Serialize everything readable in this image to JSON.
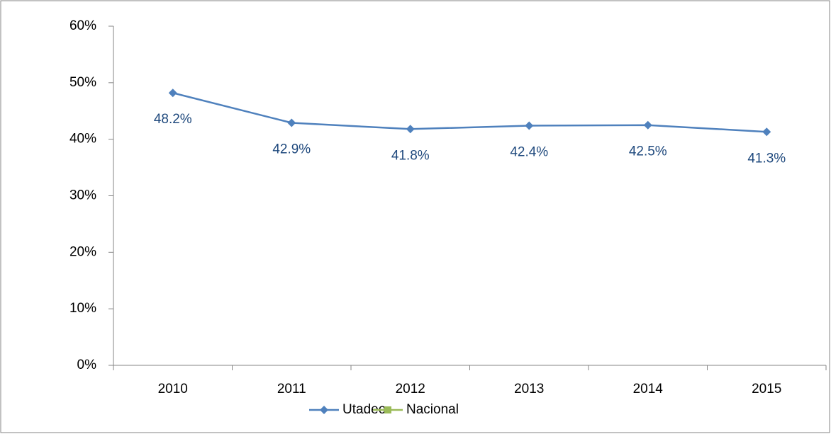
{
  "chart_data": {
    "type": "line",
    "categories": [
      "2010",
      "2011",
      "2012",
      "2013",
      "2014",
      "2015"
    ],
    "series": [
      {
        "name": "Utadeo",
        "color": "#4f81bd",
        "marker": "diamond",
        "values": [
          48.2,
          42.9,
          41.8,
          42.4,
          42.5,
          41.3
        ],
        "value_labels": [
          "48.2%",
          "42.9%",
          "41.8%",
          "42.4%",
          "42.5%",
          "41.3%"
        ]
      },
      {
        "name": "Nacional",
        "color": "#9bbb59",
        "marker": "square",
        "values": [
          null,
          null,
          null,
          null,
          null,
          null
        ]
      }
    ],
    "ylim": [
      0,
      60
    ],
    "yticks": [
      {
        "value": 0,
        "label": "0%"
      },
      {
        "value": 10,
        "label": "10%"
      },
      {
        "value": 20,
        "label": "20%"
      },
      {
        "value": 30,
        "label": "30%"
      },
      {
        "value": 40,
        "label": "40%"
      },
      {
        "value": 50,
        "label": "50%"
      },
      {
        "value": 60,
        "label": "60%"
      }
    ],
    "grid": false,
    "legend": "bottom"
  }
}
